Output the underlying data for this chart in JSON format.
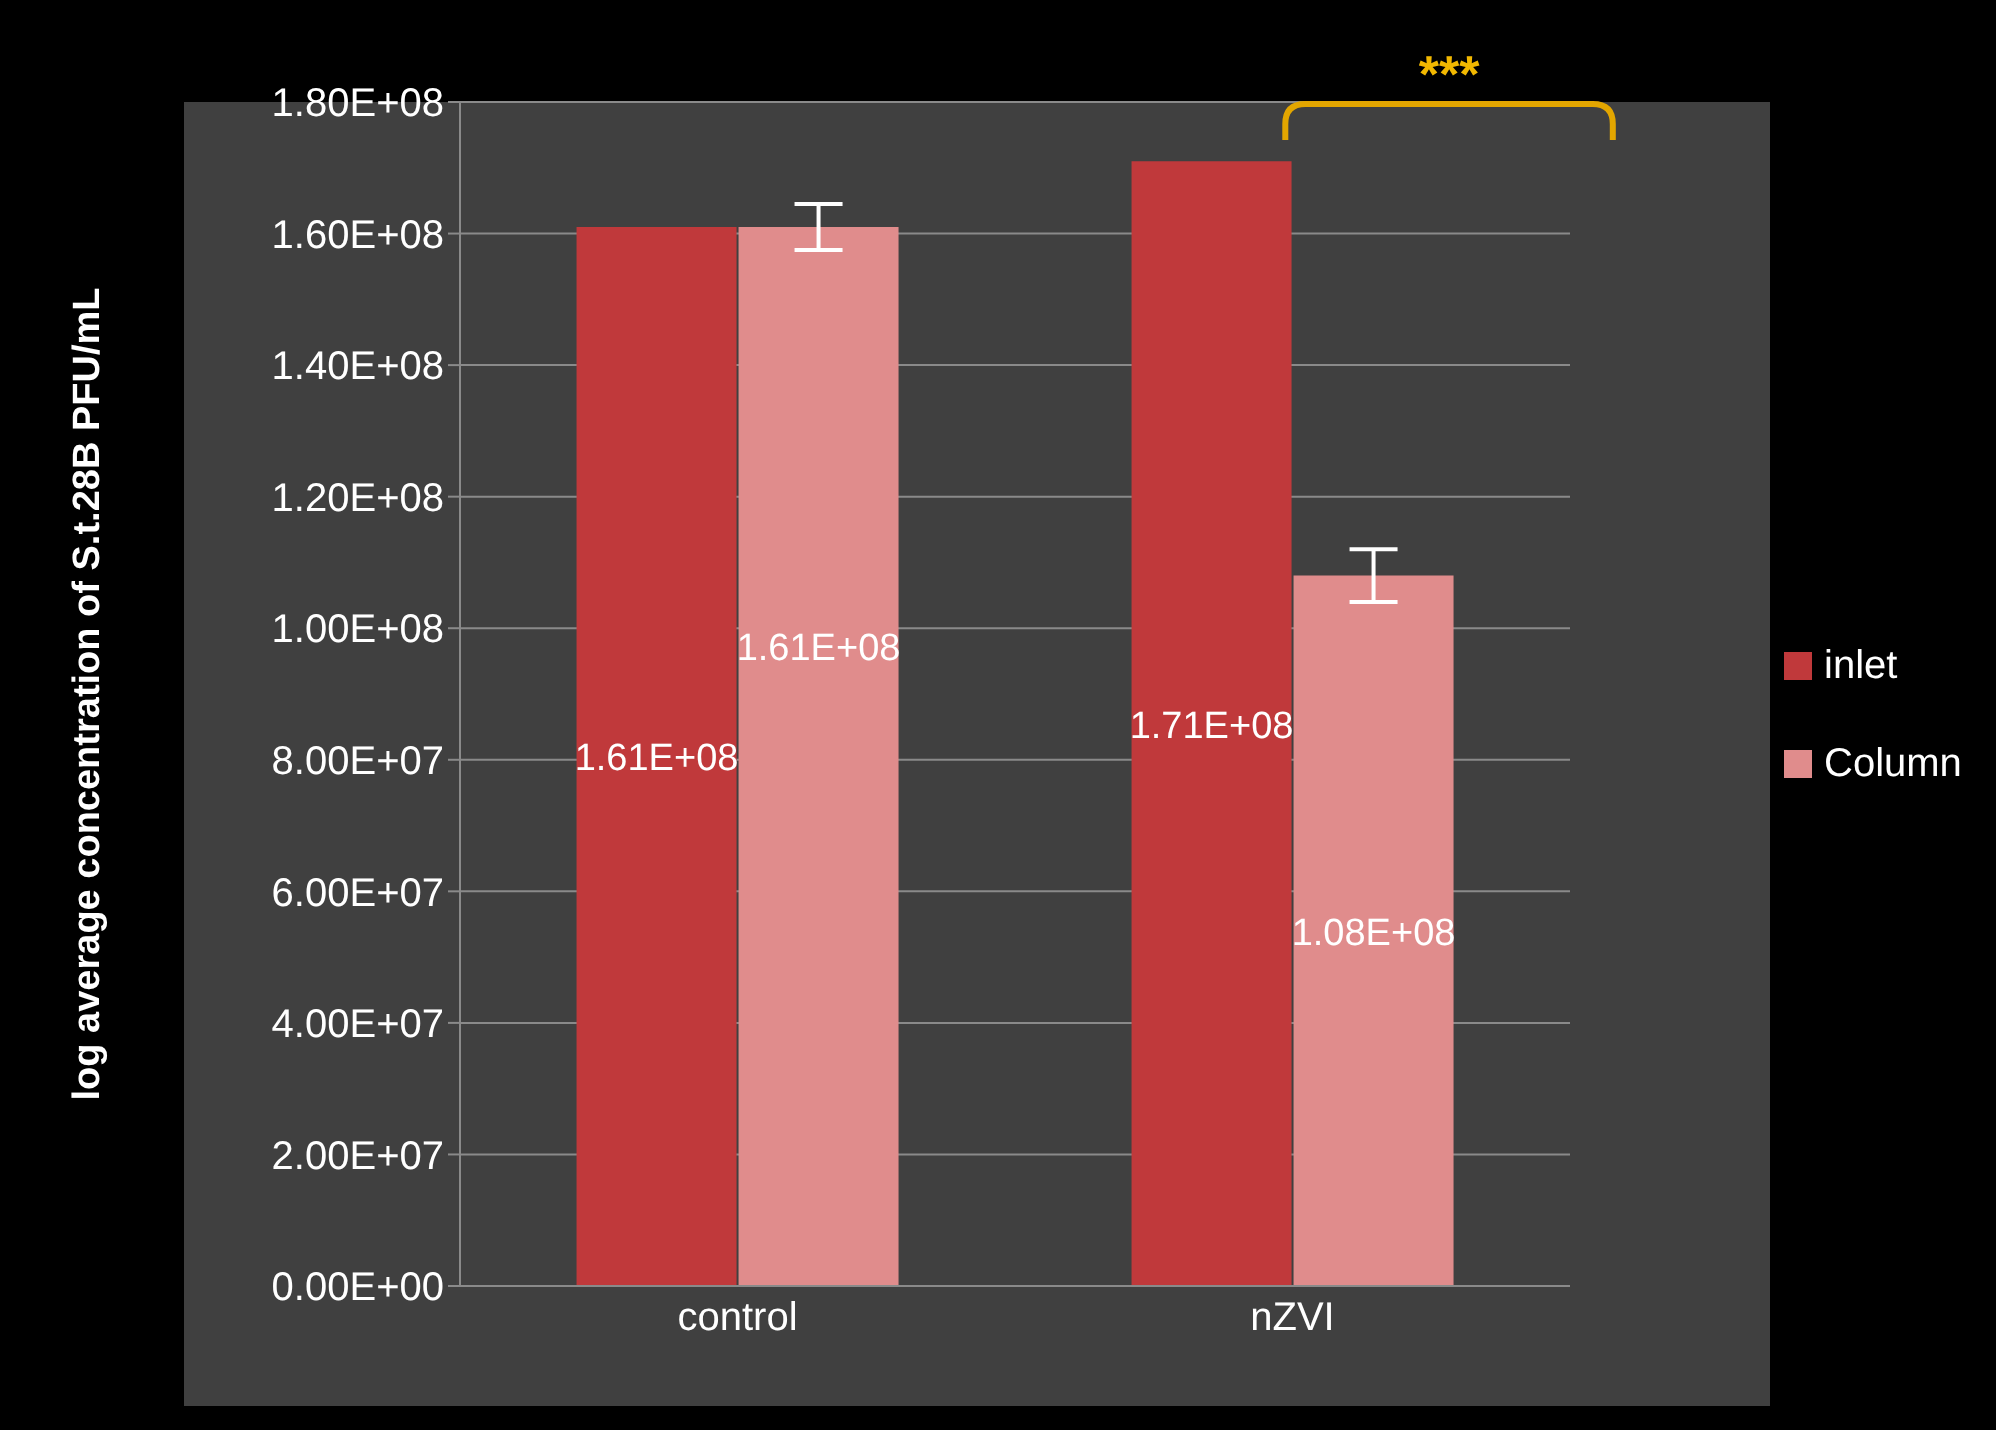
{
  "chart_data": {
    "type": "bar",
    "categories": [
      "control",
      "nZVI"
    ],
    "ylabel": "log average concentration of S.t.28B PFU/mL",
    "series": [
      {
        "name": "inlet",
        "color": "#c0393b",
        "values": [
          161000000,
          171000000
        ],
        "value_labels": [
          "1.61E+08",
          "1.71E+08"
        ]
      },
      {
        "name": "Column",
        "color": "#e08c8c",
        "values": [
          161000000,
          108000000
        ],
        "errors": [
          3500000,
          4000000
        ],
        "value_labels": [
          "1.61E+08",
          "1.08E+08"
        ]
      }
    ],
    "ylim": [
      0,
      180000000
    ],
    "yticks": [
      {
        "value": 0,
        "label": "0.00E+00"
      },
      {
        "value": 20000000,
        "label": "2.00E+07"
      },
      {
        "value": 40000000,
        "label": "4.00E+07"
      },
      {
        "value": 60000000,
        "label": "6.00E+07"
      },
      {
        "value": 80000000,
        "label": "8.00E+07"
      },
      {
        "value": 100000000,
        "label": "1.00E+08"
      },
      {
        "value": 120000000,
        "label": "1.20E+08"
      },
      {
        "value": 140000000,
        "label": "1.40E+08"
      },
      {
        "value": 160000000,
        "label": "1.60E+08"
      },
      {
        "value": 180000000,
        "label": "1.80E+08"
      }
    ],
    "annotations": [
      "***"
    ],
    "grid": "y",
    "legend": "right"
  }
}
